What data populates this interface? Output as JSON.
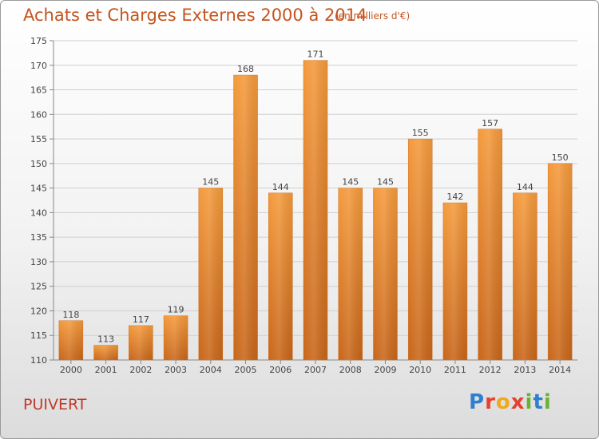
{
  "title": "Achats et Charges Externes 2000 à 2014",
  "subtitle": "(en milliers d'€)",
  "commune": "PUIVERT",
  "logo": {
    "letters": [
      "P",
      "r",
      "o",
      "x",
      "i",
      "t",
      "i"
    ],
    "colors": [
      "#2f7fd0",
      "#e8402a",
      "#f0a81c",
      "#e8402a",
      "#69b334",
      "#2f7fd0",
      "#69b334"
    ]
  },
  "colors": {
    "bar": "#ef8f2e",
    "bar_dark": "#c8661a",
    "title": "#c5541d",
    "axis": "#555555"
  },
  "chart_data": {
    "type": "bar",
    "title": "Achats et Charges Externes 2000 à 2014",
    "subtitle": "(en milliers d'€)",
    "xlabel": "",
    "ylabel": "",
    "categories": [
      "2000",
      "2001",
      "2002",
      "2003",
      "2004",
      "2005",
      "2006",
      "2007",
      "2008",
      "2009",
      "2010",
      "2011",
      "2012",
      "2013",
      "2014"
    ],
    "values": [
      118,
      113,
      117,
      119,
      145,
      168,
      144,
      171,
      145,
      145,
      155,
      142,
      157,
      144,
      150
    ],
    "ylim": [
      110,
      175
    ],
    "yticks": [
      110,
      115,
      120,
      125,
      130,
      135,
      140,
      145,
      150,
      155,
      160,
      165,
      170,
      175
    ],
    "grid": true,
    "legend": "none"
  }
}
